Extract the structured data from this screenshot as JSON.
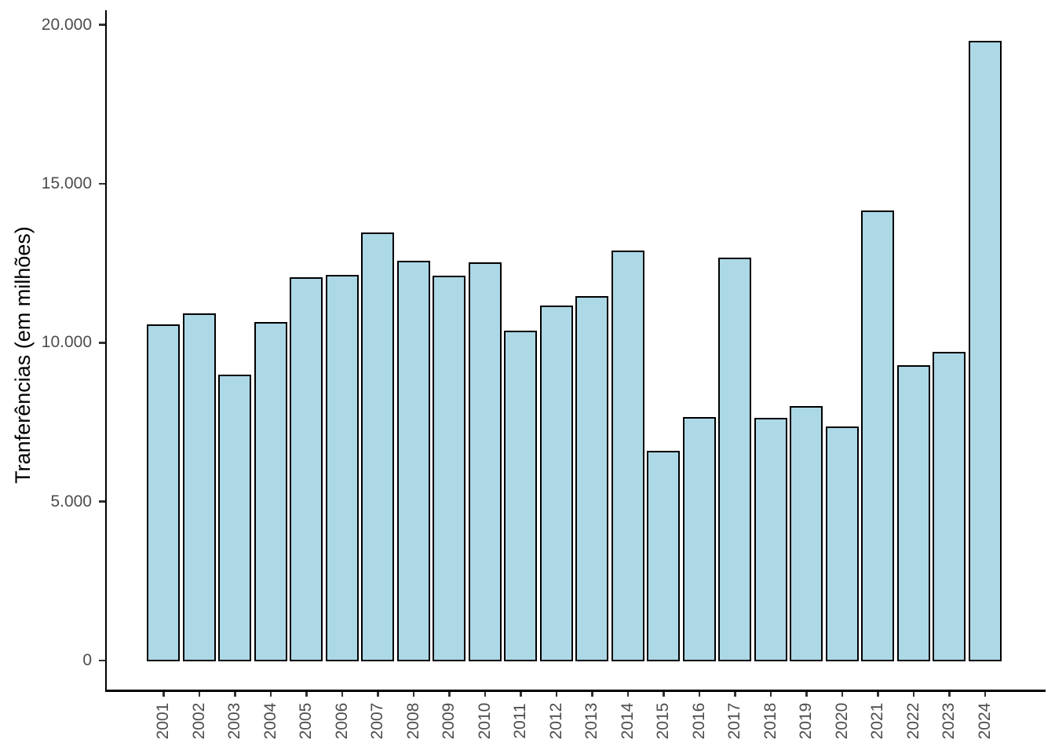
{
  "chart_data": {
    "type": "bar",
    "title": "",
    "xlabel": "",
    "ylabel": "Tranferências (em milhões)",
    "categories": [
      "2001",
      "2002",
      "2003",
      "2004",
      "2005",
      "2006",
      "2007",
      "2008",
      "2009",
      "2010",
      "2011",
      "2012",
      "2013",
      "2014",
      "2015",
      "2016",
      "2017",
      "2018",
      "2019",
      "2020",
      "2021",
      "2022",
      "2023",
      "2024"
    ],
    "values": [
      10550,
      10900,
      8980,
      10620,
      12020,
      12110,
      13450,
      12540,
      12090,
      12500,
      10350,
      11140,
      11430,
      12860,
      6560,
      7630,
      12650,
      7620,
      7980,
      7340,
      14120,
      9260,
      9690,
      19480
    ],
    "ylim": [
      0,
      20000
    ],
    "ytick_values": [
      0,
      5000,
      10000,
      15000,
      20000
    ],
    "ytick_labels": [
      "0",
      "5.000",
      "10.000",
      "15.000",
      "20.000"
    ],
    "grid": false,
    "legend": null,
    "colors": {
      "bar_fill": "#ADD8E6",
      "bar_border": "#000000",
      "axis_line": "#000000",
      "tick_label": "#4d4d4d",
      "background": "#ffffff"
    }
  }
}
